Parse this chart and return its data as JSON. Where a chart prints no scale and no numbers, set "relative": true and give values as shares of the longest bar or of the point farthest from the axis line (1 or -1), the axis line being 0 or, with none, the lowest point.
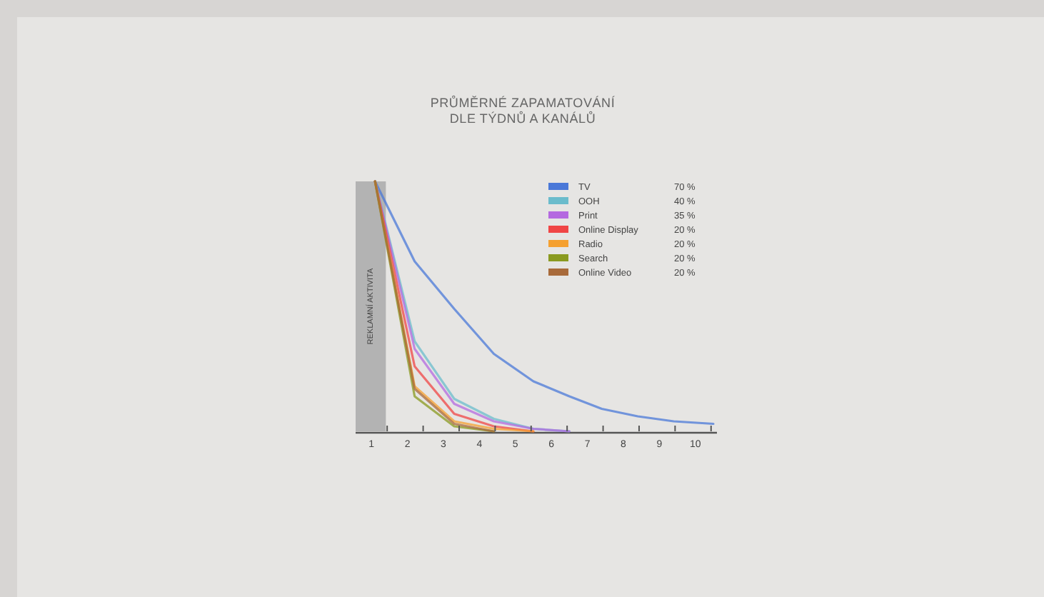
{
  "chart_data": {
    "type": "line",
    "title": "PRŮMĚRNÉ ZAPAMATOVÁNÍ\nDLE TÝDNŮ A KANÁLŮ",
    "relative": true,
    "x": [
      1.1,
      2.2,
      3.3,
      4.4,
      5.5,
      6.5,
      7.4,
      8.4,
      9.4,
      10.5
    ],
    "xlim": [
      0.56,
      10.6
    ],
    "xticks": [
      1,
      2,
      3,
      4,
      5,
      6,
      7,
      8,
      9,
      10
    ],
    "series": [
      {
        "name": "TV",
        "color": "#4a78d8",
        "values": [
          1,
          0.68,
          0.49,
          0.31,
          0.2,
          0.14,
          0.09,
          0.06,
          0.04,
          0.03
        ]
      },
      {
        "name": "OOH",
        "color": "#6bbccc",
        "values": [
          1,
          0.36,
          0.13,
          0.05,
          0.01,
          0,
          null,
          null,
          null,
          null
        ]
      },
      {
        "name": "Print",
        "color": "#b469e0",
        "values": [
          1,
          0.33,
          0.11,
          0.04,
          0.01,
          0,
          null,
          null,
          null,
          null
        ]
      },
      {
        "name": "Online Display",
        "color": "#f04545",
        "values": [
          1,
          0.26,
          0.07,
          0.02,
          0,
          null,
          null,
          null,
          null,
          null
        ]
      },
      {
        "name": "Radio",
        "color": "#f5a030",
        "values": [
          1,
          0.18,
          0.04,
          0.01,
          0,
          null,
          null,
          null,
          null,
          null
        ]
      },
      {
        "name": "Search",
        "color": "#8a9a20",
        "values": [
          1,
          0.14,
          0.02,
          0,
          null,
          null,
          null,
          null,
          null,
          null
        ]
      },
      {
        "name": "Online Video",
        "color": "#a86a3a",
        "values": [
          1,
          0.17,
          0.03,
          0,
          null,
          null,
          null,
          null,
          null,
          null
        ]
      }
    ],
    "annotations": [
      "70 %",
      "40 %",
      "35 %",
      "20 %",
      "20 %",
      "20 %",
      "20 %"
    ],
    "bands": [
      {
        "axis": "x",
        "from": 0.56,
        "to": 1.4,
        "label": "REKLAMNÍ AKTIVITA",
        "color": "#b3b3b3"
      }
    ],
    "legend": "top right",
    "grid": false,
    "marker": "none",
    "line_style": "solid"
  }
}
